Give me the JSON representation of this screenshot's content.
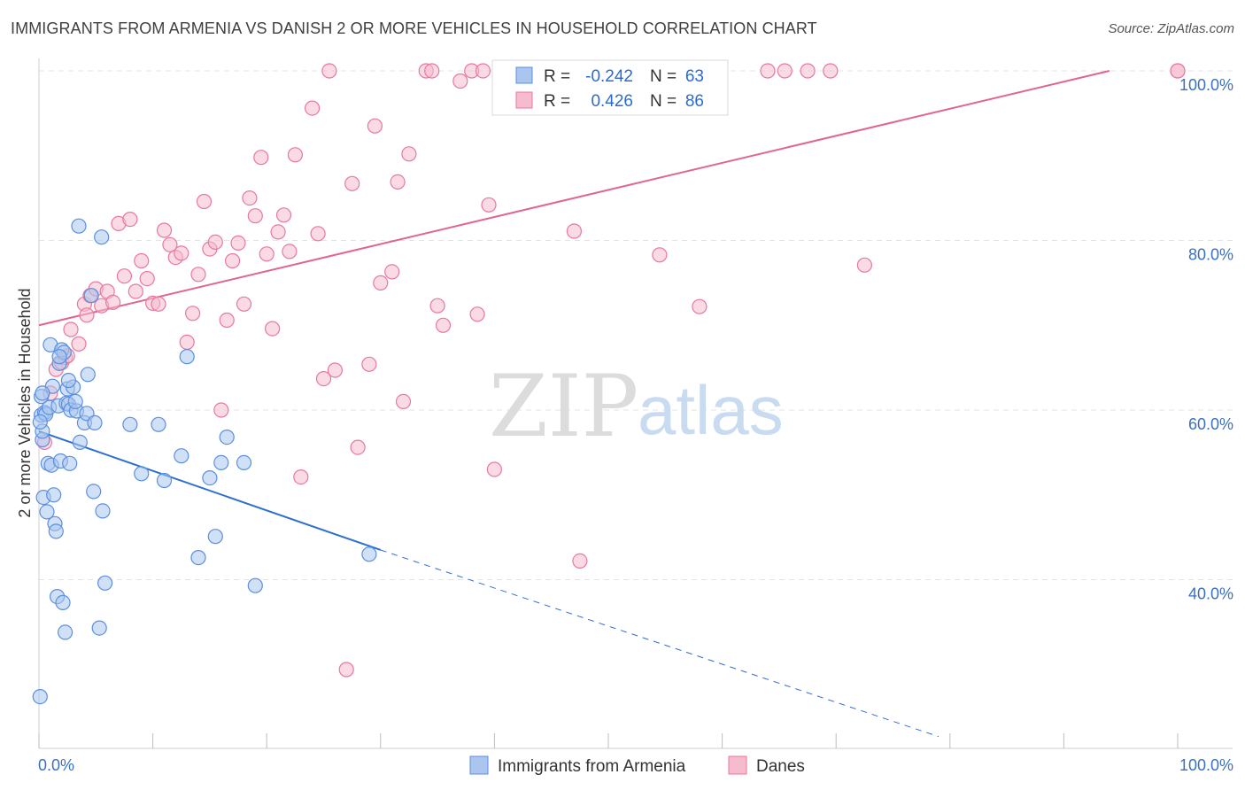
{
  "header": {
    "title": "IMMIGRANTS FROM ARMENIA VS DANISH 2 OR MORE VEHICLES IN HOUSEHOLD CORRELATION CHART",
    "source": "Source: ZipAtlas.com"
  },
  "watermark": {
    "zip": "ZIP",
    "atlas": "atlas"
  },
  "colors": {
    "blue": "#5b8fe0",
    "blue_fill": "#aac6ef",
    "blue_line": "#2d6fd0",
    "pink": "#e8799c",
    "pink_fill": "#f6bccd",
    "pink_line": "#e0668f",
    "axis_label": "#3a6fc4"
  },
  "legend": {
    "r_label": "R =",
    "n_label": "N =",
    "rows": [
      {
        "r": "-0.242",
        "n": "63"
      },
      {
        "r": "0.426",
        "n": "86"
      }
    ]
  },
  "chart_data": {
    "type": "scatter",
    "xlabel": "",
    "ylabel": "2 or more Vehicles in Household",
    "x_tick_labels": [
      "0.0%",
      "100.0%"
    ],
    "y_tick_labels": [
      "40.0%",
      "60.0%",
      "80.0%",
      "100.0%"
    ],
    "xlim": [
      0,
      100
    ],
    "ylim": [
      20,
      100
    ],
    "grid": true,
    "series": [
      {
        "name": "Immigrants from Armenia",
        "color": "blue",
        "trend": {
          "x": [
            0,
            30
          ],
          "y": [
            57.5,
            43.5
          ],
          "dashed_to": [
            79,
            21.5
          ]
        },
        "points": [
          [
            0.2,
            59.4
          ],
          [
            0.3,
            56.5
          ],
          [
            0.4,
            49.7
          ],
          [
            0.5,
            59.7
          ],
          [
            0.6,
            59.5
          ],
          [
            0.7,
            48.0
          ],
          [
            0.8,
            53.7
          ],
          [
            0.9,
            60.3
          ],
          [
            1.0,
            67.7
          ],
          [
            1.1,
            53.5
          ],
          [
            1.2,
            62.8
          ],
          [
            1.3,
            50.0
          ],
          [
            1.4,
            46.6
          ],
          [
            1.5,
            45.7
          ],
          [
            1.6,
            38.0
          ],
          [
            1.7,
            60.5
          ],
          [
            1.8,
            65.5
          ],
          [
            1.9,
            54.0
          ],
          [
            2.0,
            67.1
          ],
          [
            2.1,
            37.3
          ],
          [
            2.2,
            66.8
          ],
          [
            2.3,
            33.8
          ],
          [
            2.4,
            60.8
          ],
          [
            2.5,
            62.5
          ],
          [
            2.6,
            60.7
          ],
          [
            2.7,
            53.7
          ],
          [
            2.8,
            60.0
          ],
          [
            3.0,
            62.7
          ],
          [
            3.3,
            59.9
          ],
          [
            3.5,
            81.7
          ],
          [
            3.6,
            56.2
          ],
          [
            4.0,
            58.5
          ],
          [
            4.2,
            59.6
          ],
          [
            4.3,
            64.2
          ],
          [
            4.6,
            73.5
          ],
          [
            4.8,
            50.4
          ],
          [
            4.9,
            58.5
          ],
          [
            5.3,
            34.3
          ],
          [
            5.5,
            80.4
          ],
          [
            5.6,
            48.1
          ],
          [
            5.8,
            39.6
          ],
          [
            8.0,
            58.3
          ],
          [
            9.0,
            52.5
          ],
          [
            10.5,
            58.3
          ],
          [
            11.0,
            51.7
          ],
          [
            12.5,
            54.6
          ],
          [
            13.0,
            66.3
          ],
          [
            14.0,
            42.6
          ],
          [
            15.0,
            52.0
          ],
          [
            15.5,
            45.1
          ],
          [
            16.0,
            53.8
          ],
          [
            16.5,
            56.8
          ],
          [
            18.0,
            53.8
          ],
          [
            19.0,
            39.3
          ],
          [
            29.0,
            43.0
          ],
          [
            0.2,
            61.6
          ],
          [
            0.3,
            62.0
          ],
          [
            0.3,
            57.5
          ],
          [
            0.1,
            58.6
          ],
          [
            0.1,
            26.2
          ],
          [
            2.6,
            63.5
          ],
          [
            3.2,
            61.0
          ],
          [
            1.8,
            66.3
          ]
        ]
      },
      {
        "name": "Danes",
        "color": "pink",
        "trend": {
          "x": [
            0,
            94
          ],
          "y": [
            70.0,
            100.0
          ]
        },
        "points": [
          [
            0.5,
            56.2
          ],
          [
            1.0,
            62.0
          ],
          [
            1.5,
            64.8
          ],
          [
            2.0,
            65.6
          ],
          [
            2.3,
            66.2
          ],
          [
            2.5,
            66.4
          ],
          [
            2.8,
            69.5
          ],
          [
            3.5,
            67.8
          ],
          [
            4.0,
            72.5
          ],
          [
            4.2,
            71.2
          ],
          [
            4.5,
            73.5
          ],
          [
            5.0,
            74.3
          ],
          [
            5.5,
            72.3
          ],
          [
            6.0,
            74.0
          ],
          [
            6.5,
            72.7
          ],
          [
            7.0,
            82.0
          ],
          [
            7.5,
            75.8
          ],
          [
            8.0,
            82.5
          ],
          [
            8.5,
            74.0
          ],
          [
            9.0,
            77.6
          ],
          [
            9.5,
            75.5
          ],
          [
            10.0,
            72.6
          ],
          [
            10.5,
            72.5
          ],
          [
            11.0,
            81.2
          ],
          [
            11.5,
            79.5
          ],
          [
            12.0,
            78.0
          ],
          [
            12.5,
            78.5
          ],
          [
            13.0,
            68.0
          ],
          [
            13.5,
            71.4
          ],
          [
            14.0,
            76.0
          ],
          [
            14.5,
            84.6
          ],
          [
            15.0,
            79.0
          ],
          [
            15.5,
            79.8
          ],
          [
            16.0,
            60.0
          ],
          [
            16.5,
            70.6
          ],
          [
            17.0,
            77.6
          ],
          [
            17.5,
            79.7
          ],
          [
            18.0,
            72.5
          ],
          [
            18.5,
            85.0
          ],
          [
            19.0,
            82.9
          ],
          [
            19.5,
            89.8
          ],
          [
            20.0,
            78.4
          ],
          [
            20.5,
            69.6
          ],
          [
            21.0,
            81.0
          ],
          [
            21.5,
            83.0
          ],
          [
            22.0,
            78.7
          ],
          [
            22.5,
            90.1
          ],
          [
            23.0,
            52.1
          ],
          [
            24.0,
            95.6
          ],
          [
            24.5,
            80.8
          ],
          [
            25.0,
            63.7
          ],
          [
            25.5,
            100.0
          ],
          [
            26.0,
            64.7
          ],
          [
            27.0,
            29.4
          ],
          [
            27.5,
            86.7
          ],
          [
            28.0,
            55.6
          ],
          [
            29.0,
            65.4
          ],
          [
            29.5,
            93.5
          ],
          [
            30.0,
            75.0
          ],
          [
            31.0,
            76.3
          ],
          [
            31.5,
            86.9
          ],
          [
            32.0,
            61.0
          ],
          [
            32.5,
            90.2
          ],
          [
            34.0,
            100.0
          ],
          [
            34.5,
            100.0
          ],
          [
            35.0,
            72.3
          ],
          [
            35.5,
            70.0
          ],
          [
            37.0,
            98.8
          ],
          [
            38.0,
            100.0
          ],
          [
            38.5,
            71.3
          ],
          [
            39.0,
            100.0
          ],
          [
            39.5,
            84.2
          ],
          [
            40.0,
            53.0
          ],
          [
            47.0,
            81.1
          ],
          [
            47.5,
            42.2
          ],
          [
            52.0,
            100.0
          ],
          [
            54.0,
            100.0
          ],
          [
            54.5,
            78.3
          ],
          [
            58.0,
            72.2
          ],
          [
            64.0,
            100.0
          ],
          [
            65.5,
            100.0
          ],
          [
            67.5,
            100.0
          ],
          [
            69.5,
            100.0
          ],
          [
            72.5,
            77.1
          ],
          [
            100.0,
            100.0
          ],
          [
            100.0,
            100.0
          ]
        ]
      }
    ]
  }
}
